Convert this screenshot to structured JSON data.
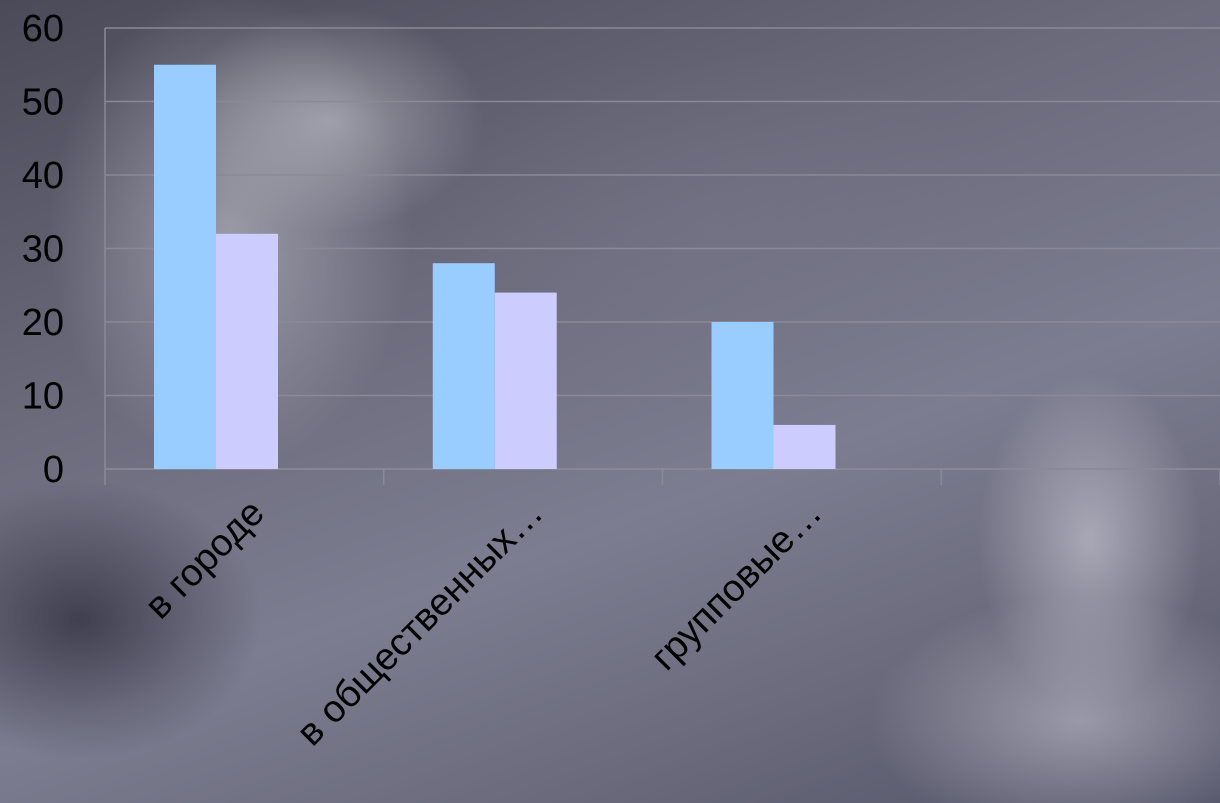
{
  "chart_data": {
    "type": "bar",
    "categories": [
      "в городе",
      "в общественных…",
      "групповые…",
      ""
    ],
    "series": [
      {
        "values": [
          55,
          28,
          20,
          null
        ],
        "color": "#99ccff"
      },
      {
        "values": [
          32,
          24,
          6,
          null
        ],
        "color": "#ccccff"
      }
    ],
    "y_ticks": [
      "0",
      "10",
      "20",
      "30",
      "40",
      "50",
      "60"
    ],
    "ylim": [
      0,
      60
    ],
    "grid": true,
    "legend": "none",
    "title": "",
    "xlabel": "",
    "ylabel": ""
  }
}
